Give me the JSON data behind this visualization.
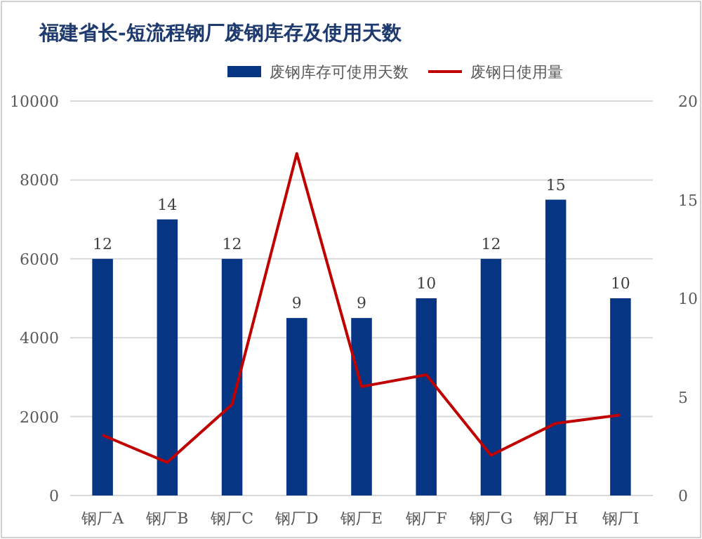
{
  "chart_data": {
    "type": "bar",
    "title": "福建省长-短流程钢厂废钢库存及使用天数",
    "categories": [
      "钢厂A",
      "钢厂B",
      "钢厂C",
      "钢厂D",
      "钢厂E",
      "钢厂F",
      "钢厂G",
      "钢厂H",
      "钢厂I"
    ],
    "series": [
      {
        "name": "废钢库存可使用天数",
        "axis": "y2",
        "color": "#063584",
        "values": [
          12,
          14,
          12,
          9,
          9,
          10,
          12,
          15,
          10
        ],
        "data_labels": true
      },
      {
        "name": "废钢日使用量",
        "type": "line",
        "color": "#c00000",
        "values": [
          1530,
          840,
          2310,
          8670,
          2760,
          3060,
          1020,
          1830,
          2040
        ]
      }
    ],
    "ylim": [
      0,
      10000
    ],
    "yticks": [
      0,
      2000,
      4000,
      6000,
      8000,
      10000
    ],
    "y2lim": [
      0,
      20
    ],
    "y2ticks": [
      0,
      5,
      10,
      15,
      20
    ],
    "grid": "y",
    "legend": "top",
    "marker": "none",
    "line_style": "solid"
  }
}
